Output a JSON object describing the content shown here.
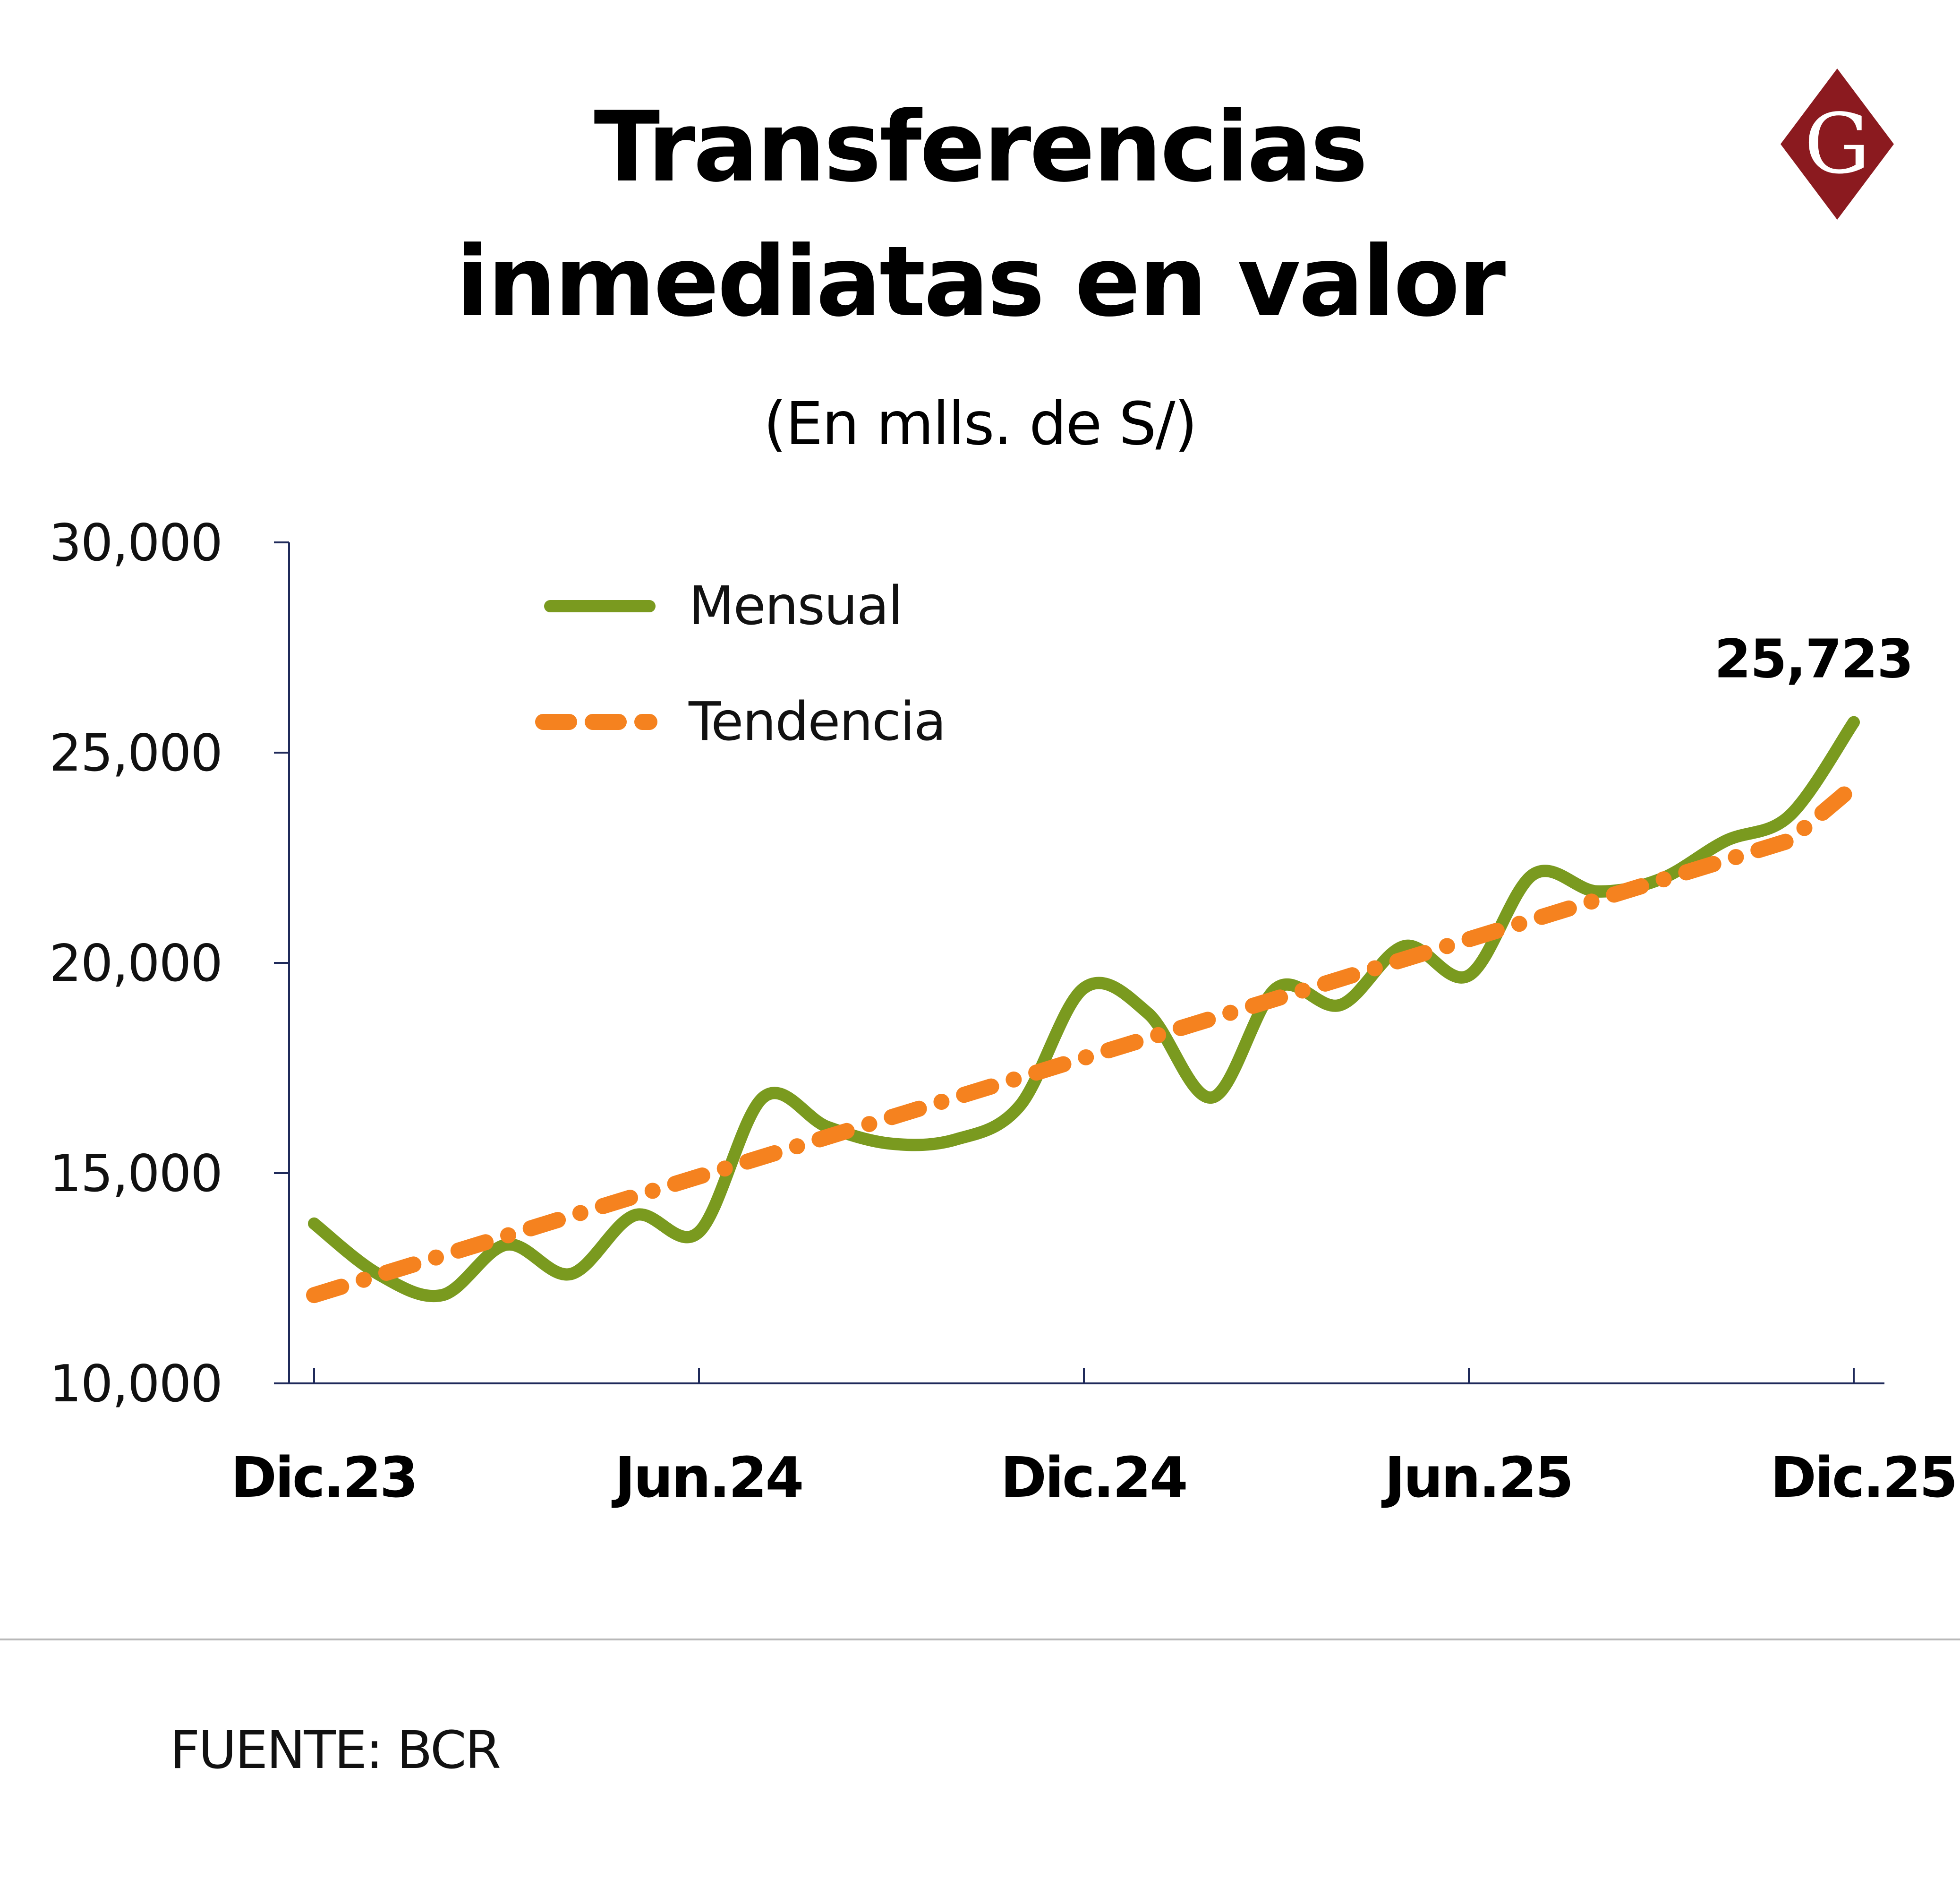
{
  "header": {
    "title_line1": "Transferencias",
    "title_line2": "inmediatas en valor",
    "subtitle": "(En mlls. de S/)"
  },
  "logo": {
    "letter": "G",
    "icon": "diamond-g-logo",
    "color": "#8b1a1f"
  },
  "footer": {
    "source": "FUENTE: BCR"
  },
  "chart_data": {
    "type": "line",
    "title": "Transferencias inmediatas en valor",
    "subtitle": "(En mlls. de S/)",
    "xlabel": "",
    "ylabel": "",
    "ylim": [
      10000,
      30000
    ],
    "yticks": [
      10000,
      15000,
      20000,
      25000,
      30000
    ],
    "ytick_labels": [
      "10,000",
      "15,000",
      "20,000",
      "25,000",
      "30,000"
    ],
    "xticks": [
      "Dic.23",
      "Jun.24",
      "Dic.24",
      "Jun.25",
      "Dic.25"
    ],
    "x": [
      "Dic.23",
      "Ene.24",
      "Feb.24",
      "Mar.24",
      "Abr.24",
      "May.24",
      "Jun.24",
      "Jul.24",
      "Ago.24",
      "Set.24",
      "Oct.24",
      "Nov.24",
      "Dic.24",
      "Ene.25",
      "Feb.25",
      "Mar.25",
      "Abr.25",
      "May.25",
      "Jun.25",
      "Jul.25",
      "Ago.25",
      "Set.25",
      "Oct.25",
      "Nov.25",
      "Dic.25"
    ],
    "grid": false,
    "legend_position": "top-left",
    "series": [
      {
        "name": "Mensual",
        "style": "solid",
        "color": "#7a9a1f",
        "values": [
          13800,
          12600,
          12100,
          13300,
          12600,
          14000,
          13600,
          16800,
          16100,
          15700,
          15800,
          16600,
          19400,
          18800,
          16800,
          19400,
          19000,
          20400,
          19700,
          22100,
          21700,
          22000,
          22900,
          23500,
          25723
        ]
      },
      {
        "name": "Tendencia",
        "style": "dashed",
        "color": "#f5821f",
        "values": [
          12100,
          12570,
          13040,
          13510,
          13980,
          14450,
          14920,
          15390,
          15860,
          16330,
          16800,
          17270,
          17740,
          18210,
          18680,
          19150,
          19620,
          20090,
          20560,
          21030,
          21500,
          21970,
          22440,
          22910,
          24200
        ]
      }
    ],
    "annotations": [
      {
        "text": "25,723",
        "x": "Dic.25",
        "y": 25723,
        "series": "Mensual"
      }
    ]
  }
}
